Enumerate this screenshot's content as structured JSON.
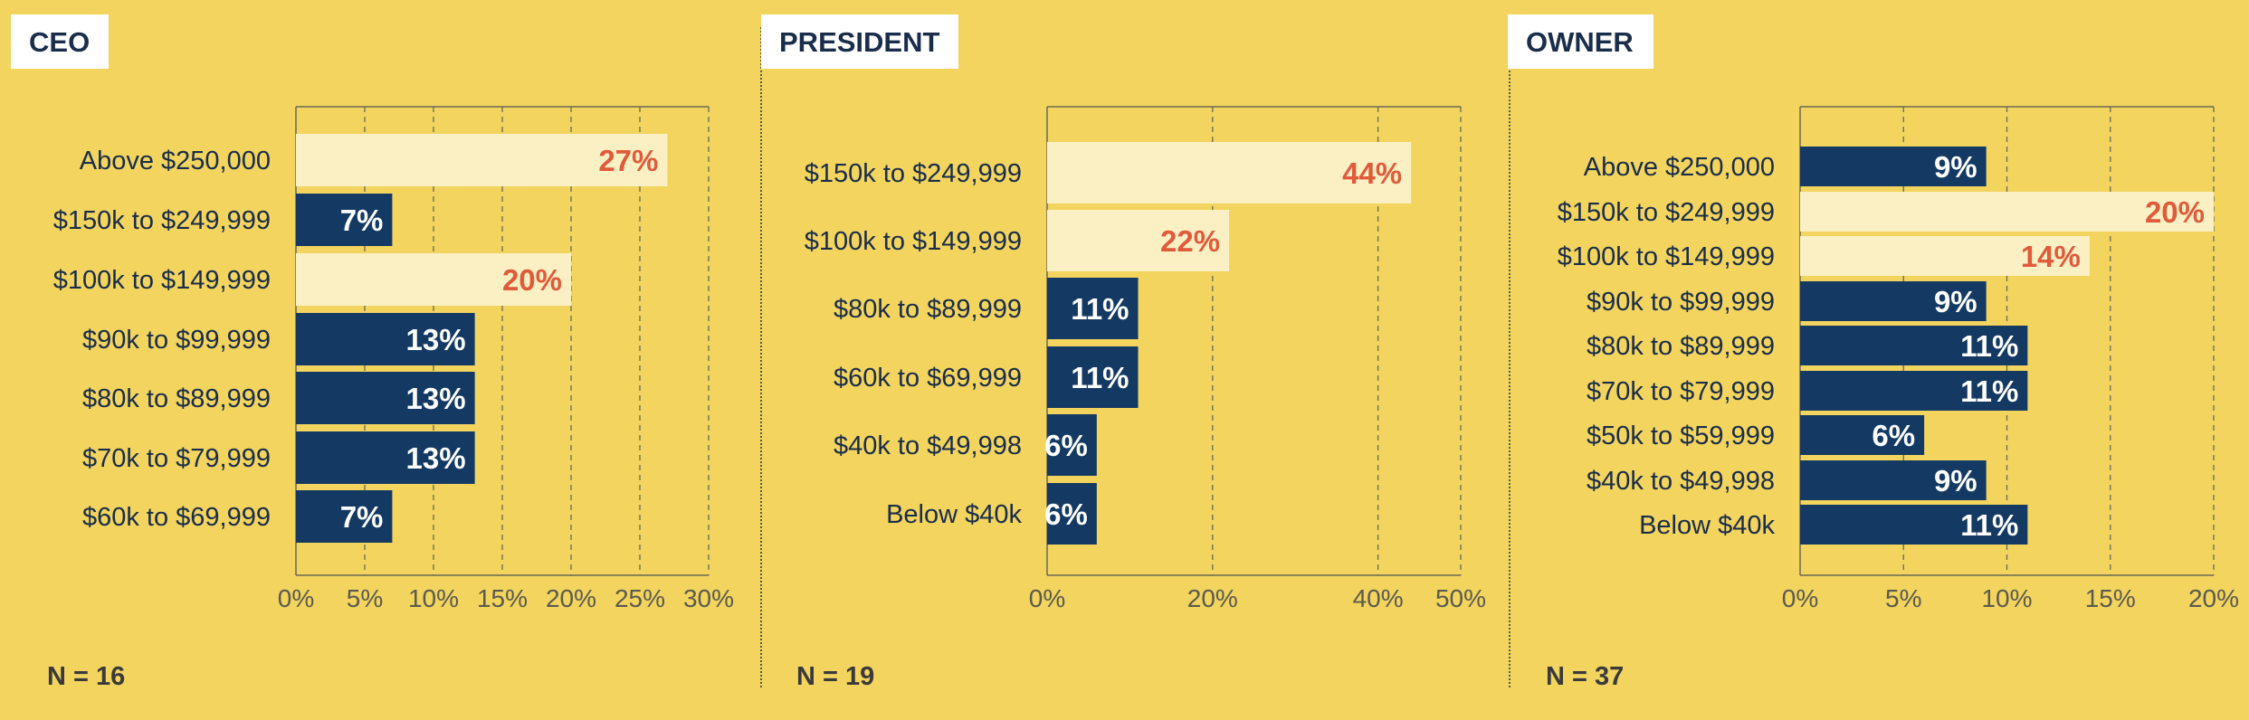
{
  "colors": {
    "background": "#f2d45f",
    "bar_dark": "#143a63",
    "bar_light": "#fbf0c4",
    "label_on_light": "#e05a3c",
    "label_on_dark": "#ffffff",
    "text": "#1a2d4a",
    "axis_text": "#5b5a4e"
  },
  "chart_data": [
    {
      "type": "bar",
      "orientation": "horizontal",
      "title": "CEO",
      "note": "N = 16",
      "categories": [
        "Above $250,000",
        "$150k to $249,999",
        "$100k to $149,999",
        "$90k to $99,999",
        "$80k to $89,999",
        "$70k to $79,999",
        "$60k to $69,999"
      ],
      "values": [
        27,
        7,
        20,
        13,
        13,
        13,
        7
      ],
      "labels": [
        "27%",
        "7%",
        "20%",
        "13%",
        "13%",
        "13%",
        "7%"
      ],
      "highlight": [
        true,
        false,
        true,
        false,
        false,
        false,
        false
      ],
      "xlim": [
        0,
        30
      ],
      "ticks": [
        0,
        5,
        10,
        15,
        20,
        25,
        30
      ],
      "tick_labels": [
        "0%",
        "5%",
        "10%",
        "15%",
        "20%",
        "25%",
        "30%"
      ],
      "grid": true
    },
    {
      "type": "bar",
      "orientation": "horizontal",
      "title": "PRESIDENT",
      "note": "N = 19",
      "categories": [
        "$150k to $249,999",
        "$100k to $149,999",
        "$80k to $89,999",
        "$60k to $69,999",
        "$40k to $49,998",
        "Below $40k"
      ],
      "values": [
        44,
        22,
        11,
        11,
        6,
        6
      ],
      "labels": [
        "44%",
        "22%",
        "11%",
        "11%",
        "6%",
        "6%"
      ],
      "highlight": [
        true,
        true,
        false,
        false,
        false,
        false
      ],
      "xlim": [
        0,
        50
      ],
      "ticks": [
        0,
        20,
        40,
        50
      ],
      "tick_labels": [
        "0%",
        "20%",
        "40%",
        "50%"
      ],
      "grid": true
    },
    {
      "type": "bar",
      "orientation": "horizontal",
      "title": "OWNER",
      "note": "N = 37",
      "categories": [
        "Above $250,000",
        "$150k to $249,999",
        "$100k to $149,999",
        "$90k to $99,999",
        "$80k to $89,999",
        "$70k to $79,999",
        "$50k to $59,999",
        "$40k to $49,998",
        "Below $40k"
      ],
      "values": [
        9,
        20,
        14,
        9,
        11,
        11,
        6,
        9,
        11
      ],
      "labels": [
        "9%",
        "20%",
        "14%",
        "9%",
        "11%",
        "11%",
        "6%",
        "9%",
        "11%"
      ],
      "highlight": [
        false,
        true,
        true,
        false,
        false,
        false,
        false,
        false,
        false
      ],
      "xlim": [
        0,
        20
      ],
      "ticks": [
        0,
        5,
        10,
        15,
        20
      ],
      "tick_labels": [
        "0%",
        "5%",
        "10%",
        "15%",
        "20%"
      ],
      "grid": true
    }
  ]
}
